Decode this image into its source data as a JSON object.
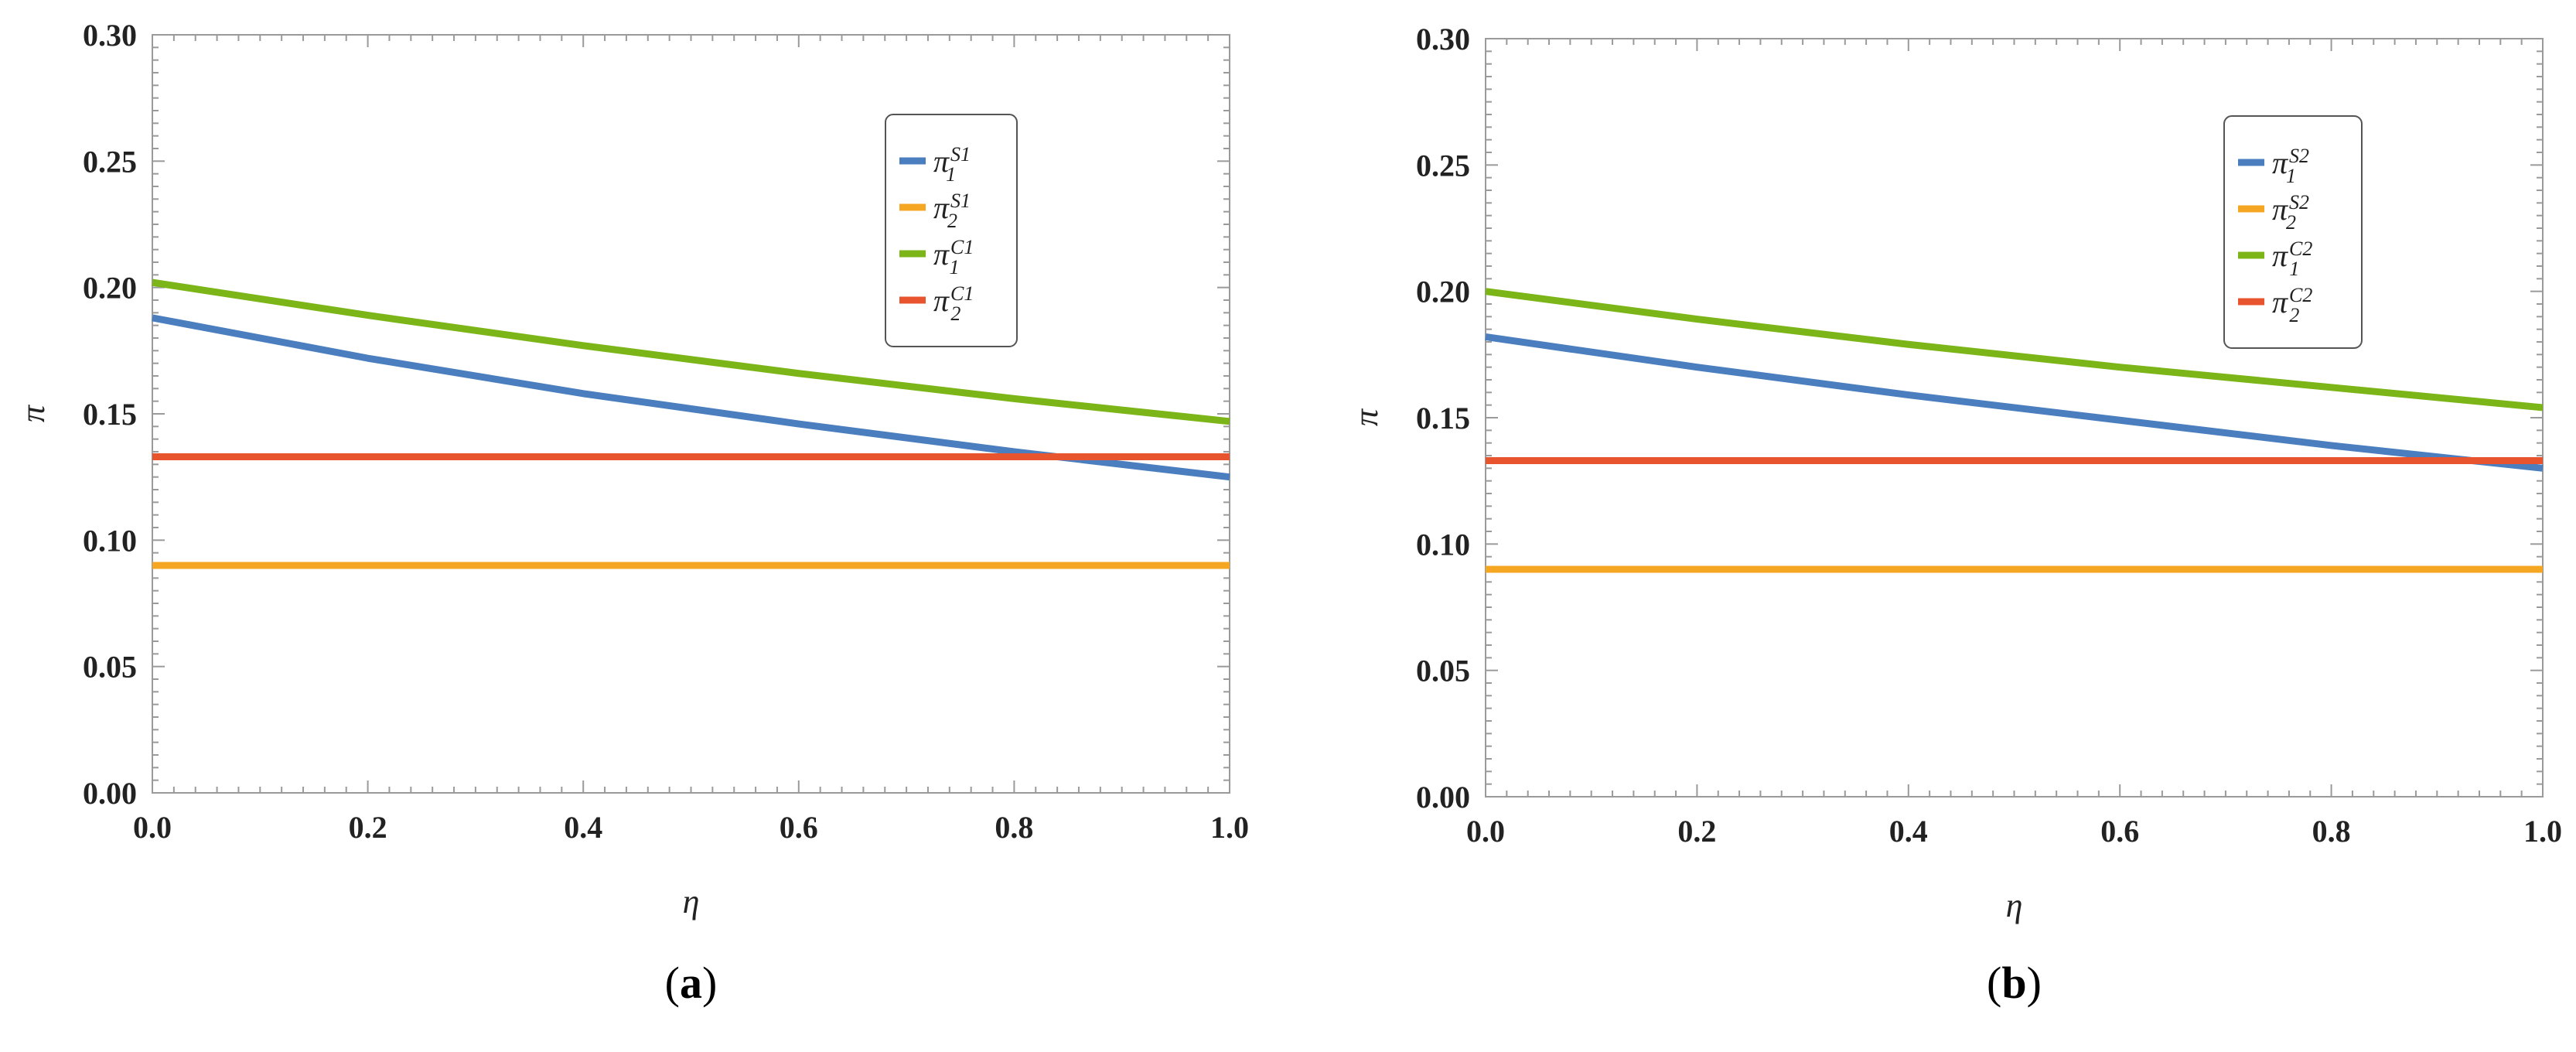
{
  "chart_data": [
    {
      "type": "line",
      "caption": "a",
      "xlabel": "η",
      "ylabel": "π",
      "xlim": [
        0,
        1
      ],
      "ylim": [
        0,
        0.3
      ],
      "xticks": [
        "0.0",
        "0.2",
        "0.4",
        "0.6",
        "0.8",
        "1.0"
      ],
      "yticks": [
        "0.00",
        "0.05",
        "0.10",
        "0.15",
        "0.20",
        "0.25",
        "0.30"
      ],
      "x": [
        0.0,
        0.2,
        0.4,
        0.6,
        0.8,
        1.0
      ],
      "series": [
        {
          "name": "π",
          "sub": "1",
          "sup": "S1",
          "color": "#4a7ebf",
          "values": [
            0.188,
            0.172,
            0.158,
            0.146,
            0.135,
            0.125
          ]
        },
        {
          "name": "π",
          "sub": "2",
          "sup": "S1",
          "color": "#f5a623",
          "values": [
            0.09,
            0.09,
            0.09,
            0.09,
            0.09,
            0.09
          ]
        },
        {
          "name": "π",
          "sub": "1",
          "sup": "C1",
          "color": "#7cb518",
          "values": [
            0.202,
            0.189,
            0.177,
            0.166,
            0.156,
            0.147
          ]
        },
        {
          "name": "π",
          "sub": "2",
          "sup": "C1",
          "color": "#e8542e",
          "values": [
            0.133,
            0.133,
            0.133,
            0.133,
            0.133,
            0.133
          ]
        }
      ]
    },
    {
      "type": "line",
      "caption": "b",
      "xlabel": "η",
      "ylabel": "π",
      "xlim": [
        0,
        1
      ],
      "ylim": [
        0,
        0.3
      ],
      "xticks": [
        "0.0",
        "0.2",
        "0.4",
        "0.6",
        "0.8",
        "1.0"
      ],
      "yticks": [
        "0.00",
        "0.05",
        "0.10",
        "0.15",
        "0.20",
        "0.25",
        "0.30"
      ],
      "x": [
        0.0,
        0.2,
        0.4,
        0.6,
        0.8,
        1.0
      ],
      "series": [
        {
          "name": "π",
          "sub": "1",
          "sup": "S2",
          "color": "#4a7ebf",
          "values": [
            0.182,
            0.17,
            0.159,
            0.149,
            0.139,
            0.13
          ]
        },
        {
          "name": "π",
          "sub": "2",
          "sup": "S2",
          "color": "#f5a623",
          "values": [
            0.09,
            0.09,
            0.09,
            0.09,
            0.09,
            0.09
          ]
        },
        {
          "name": "π",
          "sub": "1",
          "sup": "C2",
          "color": "#7cb518",
          "values": [
            0.2,
            0.189,
            0.179,
            0.17,
            0.162,
            0.154
          ]
        },
        {
          "name": "π",
          "sub": "2",
          "sup": "C2",
          "color": "#e8542e",
          "values": [
            0.133,
            0.133,
            0.133,
            0.133,
            0.133,
            0.133
          ]
        }
      ]
    }
  ]
}
